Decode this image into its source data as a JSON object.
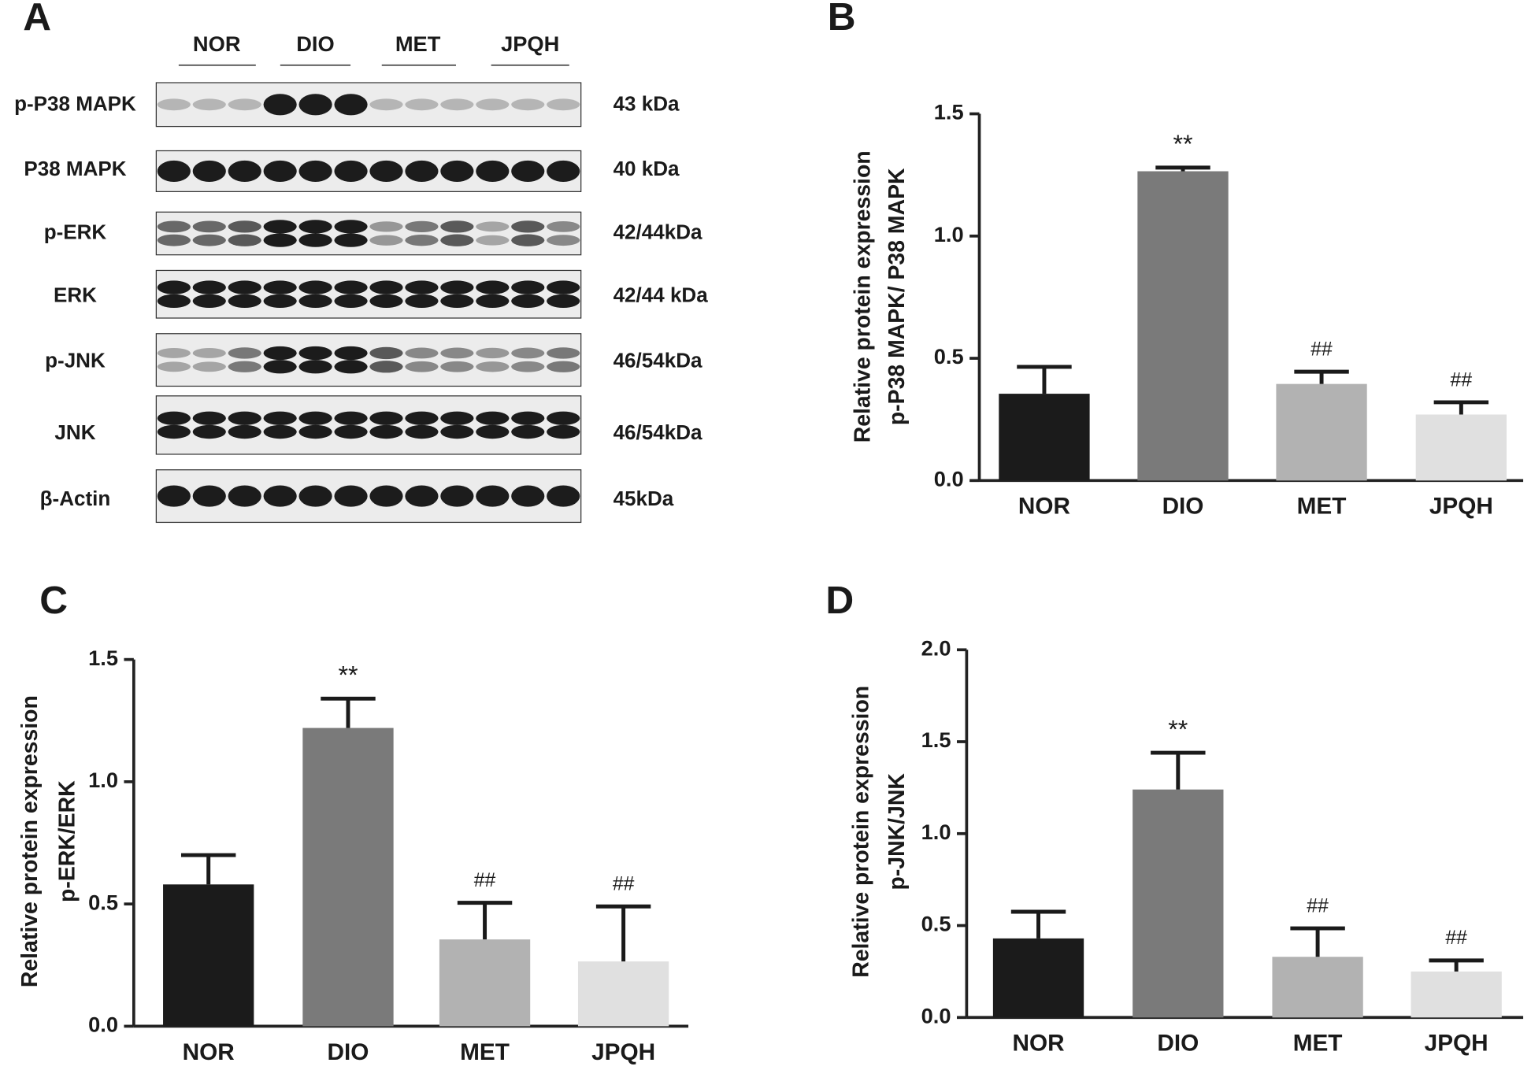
{
  "blot": {
    "panel": "A",
    "groups": [
      "NOR",
      "DIO",
      "MET",
      "JPQH"
    ],
    "rows": [
      {
        "label": "p-P38 MAPK",
        "size": "43 kDa"
      },
      {
        "label": "P38 MAPK",
        "size": "40 kDa"
      },
      {
        "label": "p-ERK",
        "size": "42/44kDa"
      },
      {
        "label": "ERK",
        "size": "42/44 kDa"
      },
      {
        "label": "p-JNK",
        "size": "46/54kDa"
      },
      {
        "label": "JNK",
        "size": "46/54kDa"
      },
      {
        "label": "β-Actin",
        "size": "45kDa"
      }
    ]
  },
  "chart_data": [
    {
      "type": "bar",
      "panel": "B",
      "ylabel": [
        "Relative protein expression",
        "p-P38 MAPK/ P38 MAPK"
      ],
      "categories": [
        "NOR",
        "DIO",
        "MET",
        "JPQH"
      ],
      "values": [
        0.355,
        1.265,
        0.395,
        0.27
      ],
      "errors": [
        0.11,
        0.015,
        0.05,
        0.05
      ],
      "annotations": [
        null,
        "**",
        "##",
        "##"
      ],
      "colors": [
        "#1b1b1b",
        "#7a7a7a",
        "#b2b2b2",
        "#e0e0e0"
      ],
      "ylim": [
        0,
        1.5
      ],
      "yticks": [
        {
          "value": 0,
          "label": "0.0"
        },
        0.5,
        {
          "value": 1,
          "label": "1.0"
        },
        1.5
      ]
    },
    {
      "type": "bar",
      "panel": "C",
      "ylabel": [
        "Relative protein expression",
        "p-ERK/ERK"
      ],
      "categories": [
        "NOR",
        "DIO",
        "MET",
        "JPQH"
      ],
      "values": [
        0.58,
        1.22,
        0.355,
        0.265
      ],
      "errors": [
        0.12,
        0.12,
        0.15,
        0.225
      ],
      "annotations": [
        null,
        "**",
        "##",
        "##"
      ],
      "colors": [
        "#1b1b1b",
        "#7a7a7a",
        "#b2b2b2",
        "#e0e0e0"
      ],
      "ylim": [
        0,
        1.5
      ],
      "yticks": [
        {
          "value": 0,
          "label": "0.0"
        },
        0.5,
        {
          "value": 1,
          "label": "1.0"
        },
        1.5
      ]
    },
    {
      "type": "bar",
      "panel": "D",
      "ylabel": [
        "Relative protein expression",
        "p-JNK/JNK"
      ],
      "categories": [
        "NOR",
        "DIO",
        "MET",
        "JPQH"
      ],
      "values": [
        0.43,
        1.24,
        0.33,
        0.25
      ],
      "errors": [
        0.145,
        0.2,
        0.155,
        0.06
      ],
      "annotations": [
        null,
        "**",
        "##",
        "##"
      ],
      "colors": [
        "#1b1b1b",
        "#7a7a7a",
        "#b2b2b2",
        "#e0e0e0"
      ],
      "ylim": [
        0,
        2
      ],
      "yticks": [
        {
          "value": 0,
          "label": "0.0"
        },
        0.5,
        {
          "value": 1,
          "label": "1.0"
        },
        1.5,
        {
          "value": 2,
          "label": "2.0"
        }
      ]
    }
  ]
}
